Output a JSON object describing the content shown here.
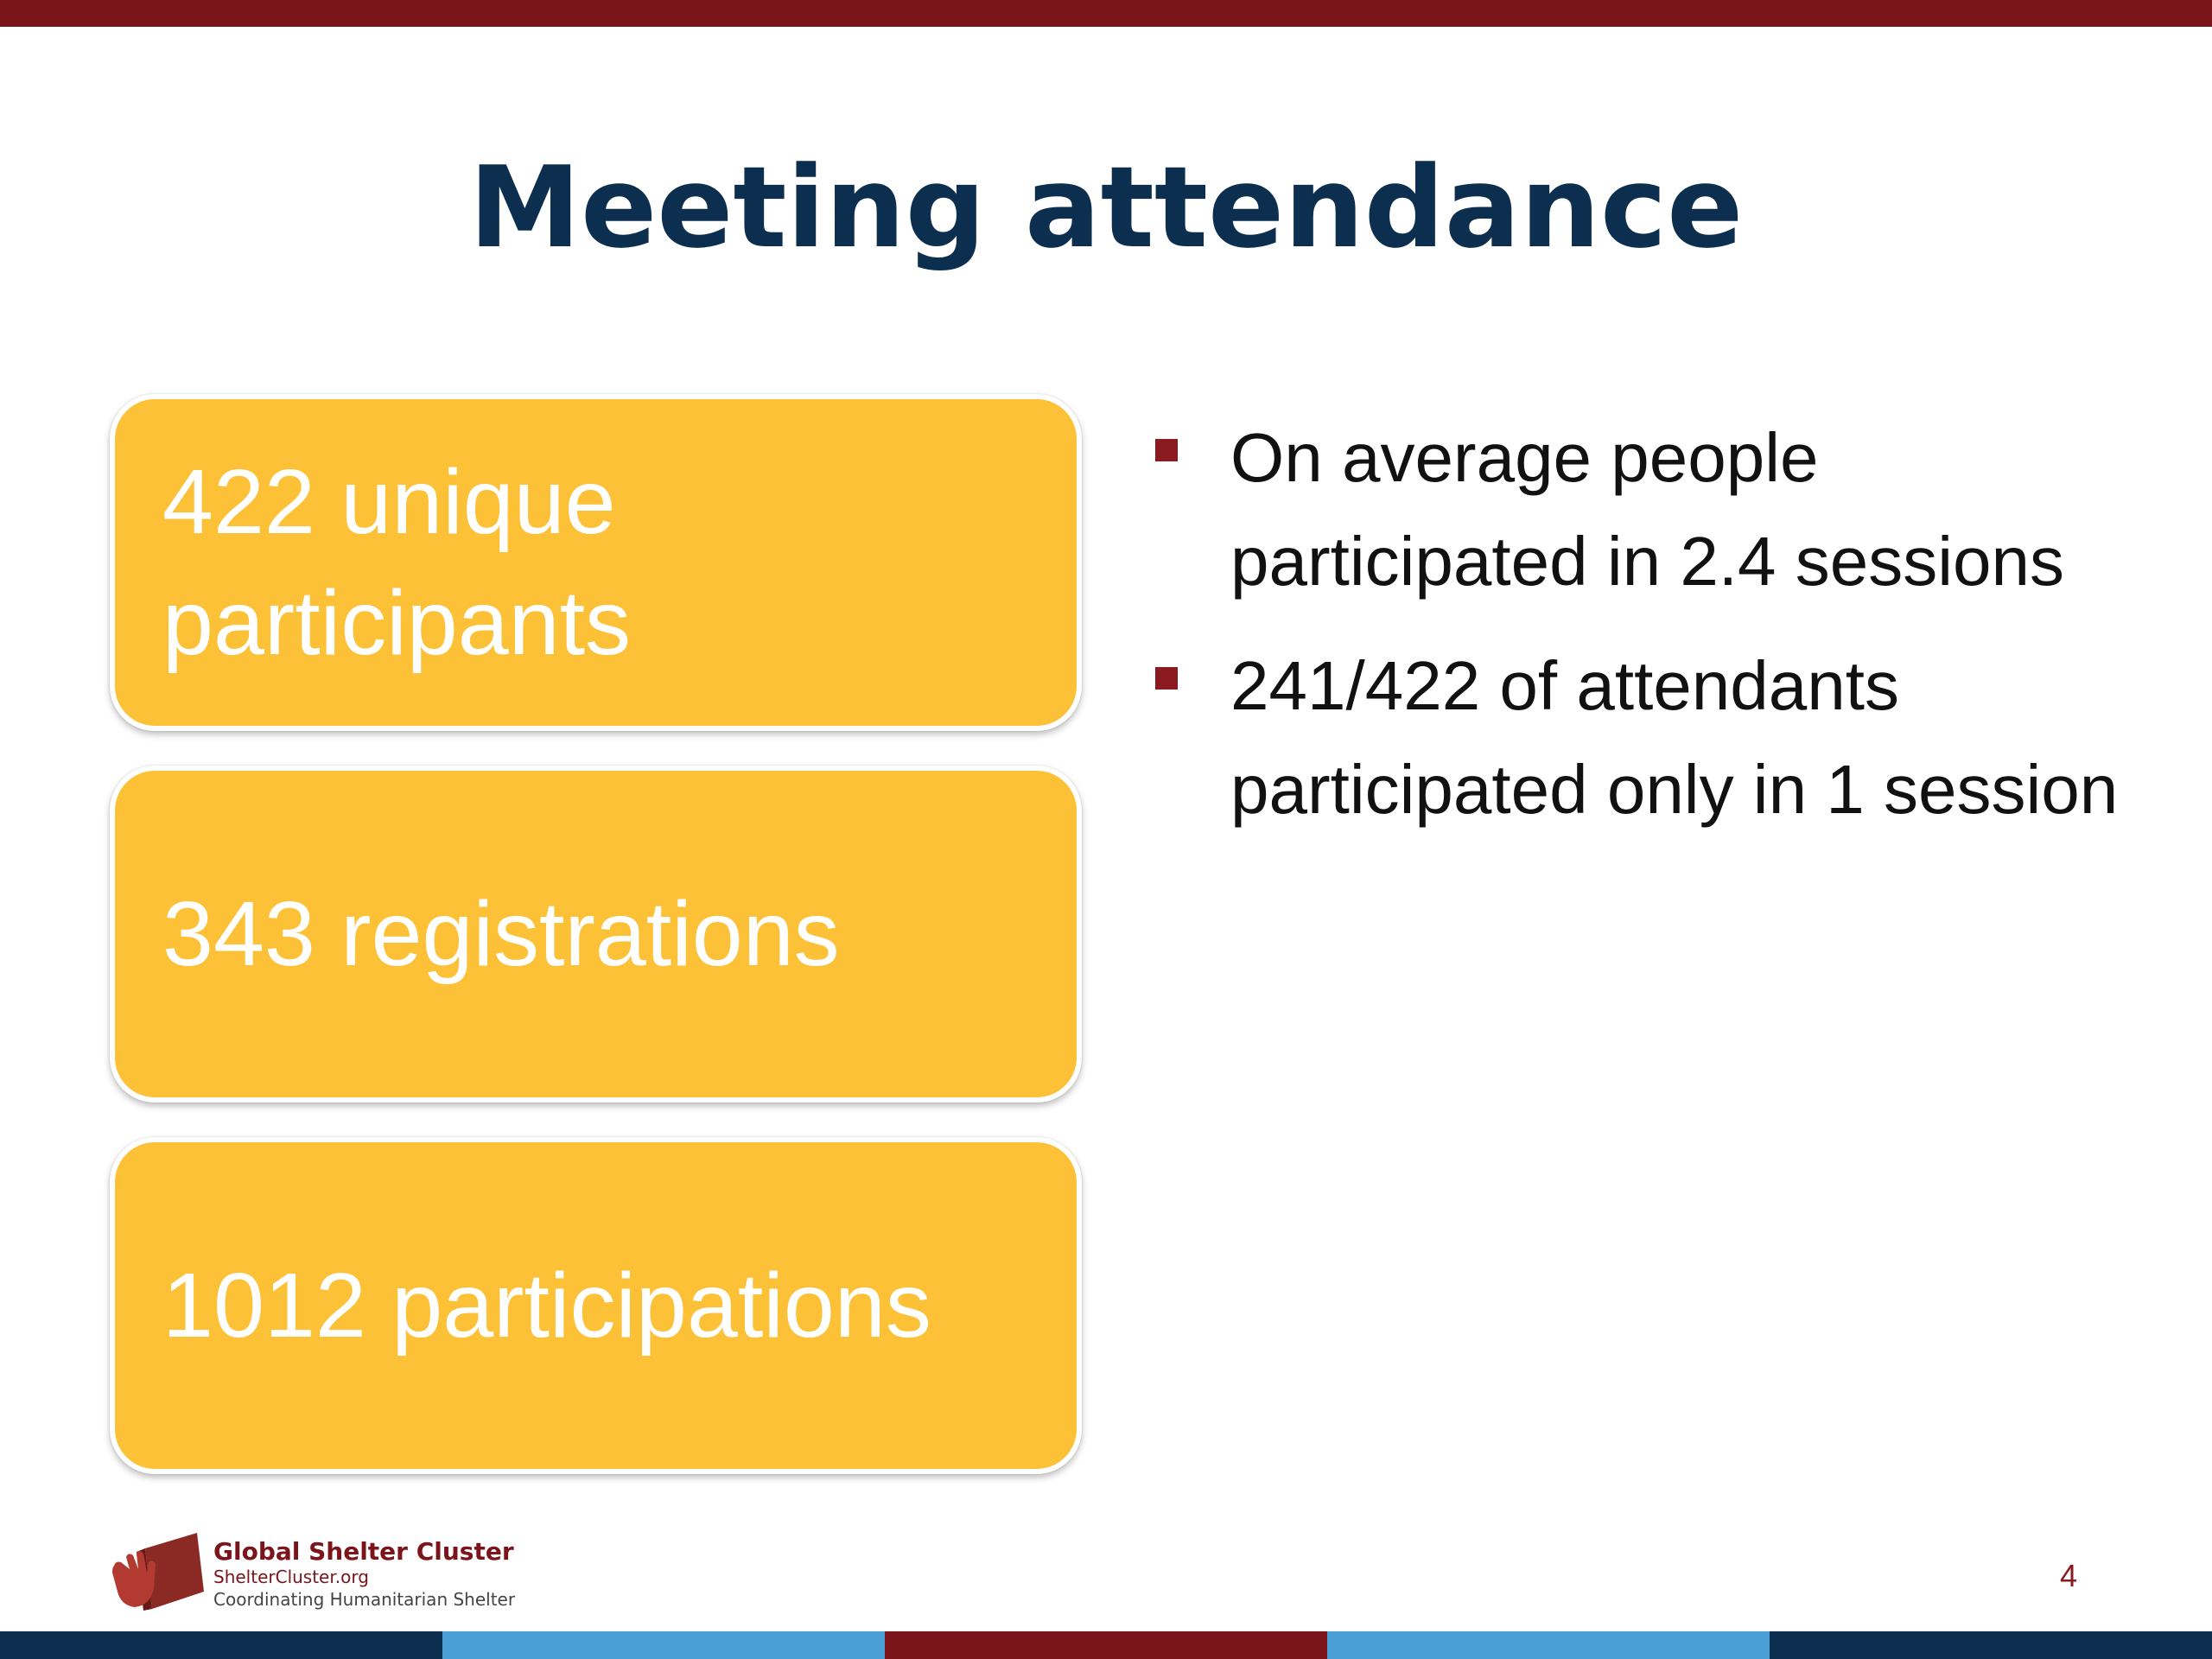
{
  "slide": {
    "title": "Meeting attendance",
    "page_number": "4"
  },
  "stats": [
    {
      "label": "422 unique participants"
    },
    {
      "label": "343 registrations"
    },
    {
      "label": "1012 participations"
    }
  ],
  "bullets": [
    {
      "text": "On average people participated in 2.4 sessions"
    },
    {
      "text": "241/422 of attendants participated only in 1 session"
    }
  ],
  "footer": {
    "org_name": "Global Shelter Cluster",
    "url": "ShelterCluster.org",
    "tagline": "Coordinating Humanitarian Shelter"
  },
  "colors": {
    "accent_red": "#7b141b",
    "title_navy": "#0d2f4f",
    "box_yellow": "#fcc136",
    "bottom_bar": [
      "#0d2f4f",
      "#4a9fd6",
      "#7b141b",
      "#4a9fd6",
      "#0d2f4f"
    ]
  },
  "icons": {
    "logo": "shelter-hand-logo-icon",
    "bullet": "square-bullet-icon"
  }
}
